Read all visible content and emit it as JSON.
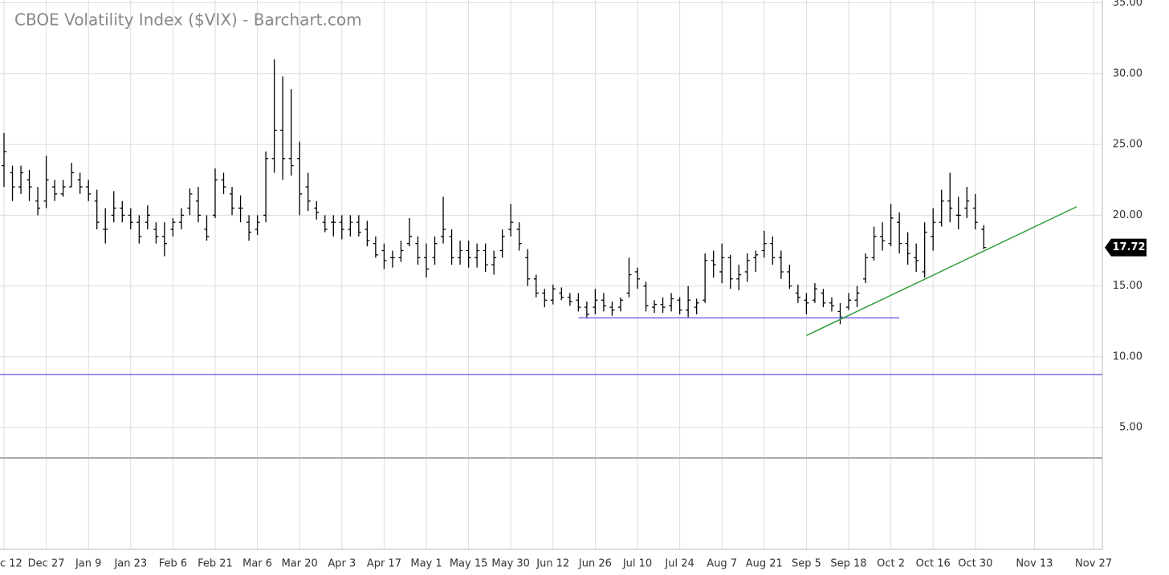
{
  "chart_data": {
    "type": "ohlc",
    "title": "CBOE Volatility Index ($VIX) - Barchart.com",
    "color": "#000000",
    "categories": [
      "c 12",
      null,
      null,
      null,
      null,
      "Dec 27",
      null,
      null,
      null,
      null,
      "Jan 9",
      null,
      null,
      null,
      null,
      "Jan 23",
      null,
      null,
      null,
      null,
      "Feb 6",
      null,
      null,
      null,
      null,
      "Feb 21",
      null,
      null,
      null,
      null,
      "Mar 6",
      null,
      null,
      null,
      null,
      "Mar 20",
      null,
      null,
      null,
      null,
      "Apr 3",
      null,
      null,
      null,
      null,
      "Apr 17",
      null,
      null,
      null,
      null,
      "May 1",
      null,
      null,
      null,
      null,
      "May 15",
      null,
      null,
      null,
      null,
      "May 30",
      null,
      null,
      null,
      null,
      "Jun 12",
      null,
      null,
      null,
      null,
      "Jun 26",
      null,
      null,
      null,
      null,
      "Jul 10",
      null,
      null,
      null,
      null,
      "Jul 24",
      null,
      null,
      null,
      null,
      "Aug 7",
      null,
      null,
      null,
      null,
      "Aug 21",
      null,
      null,
      null,
      null,
      "Sep 5",
      null,
      null,
      null,
      null,
      "Sep 18",
      null,
      null,
      null,
      null,
      "Oct 2",
      null,
      null,
      null,
      null,
      "Oct 16",
      null,
      null,
      null,
      null,
      "Oct 30",
      null,
      null,
      null,
      null,
      null,
      null,
      "Nov 13",
      null,
      null,
      null,
      null,
      null,
      null,
      "Nov 27"
    ],
    "open": [
      23.5,
      23,
      22,
      22.5,
      21,
      21,
      22,
      21.5,
      22,
      22.5,
      22,
      21,
      19,
      20,
      20.5,
      20,
      19.5,
      19.5,
      19,
      18.5,
      19,
      19.5,
      20.5,
      21,
      19,
      20,
      22.5,
      21.5,
      20.5,
      19.5,
      19,
      20,
      24,
      26,
      24,
      24,
      22,
      20.5,
      19.5,
      19.5,
      19.5,
      19,
      19.5,
      19,
      18,
      17.5,
      17,
      17,
      18,
      18,
      17,
      17,
      18.5,
      18.5,
      17,
      17.5,
      17,
      17.5,
      16.5,
      17.5,
      19,
      19,
      17,
      15.5,
      14.5,
      14,
      14.5,
      14.2,
      14,
      13.5,
      13.5,
      14,
      13.5,
      13.5,
      14.5,
      16,
      15,
      13.5,
      13.7,
      13.6,
      14,
      13.3,
      13.5,
      14,
      16.8,
      16,
      17,
      15.5,
      16,
      17,
      17.5,
      18,
      17,
      16,
      14.5,
      14,
      14,
      14.5,
      13.8,
      13.2,
      13.5,
      14,
      15.5,
      17,
      18.5,
      18,
      19.5,
      18,
      17,
      16,
      18.5,
      19.5,
      21,
      20,
      20.5,
      20.5,
      19,
      null,
      null,
      null,
      null,
      null,
      null,
      null,
      null,
      null,
      null,
      null,
      null,
      null
    ],
    "high": [
      25.8,
      23.5,
      23.5,
      23.2,
      22,
      24.2,
      22.5,
      22.5,
      23.7,
      23,
      22.5,
      21.8,
      20.5,
      21.7,
      21,
      20.5,
      20,
      20.7,
      19.5,
      19.5,
      19.8,
      20.5,
      21.9,
      22,
      20,
      23.3,
      23,
      22,
      21.4,
      20,
      20,
      24.5,
      31,
      29.8,
      28.9,
      25.2,
      23,
      21,
      20,
      20,
      20,
      20,
      20,
      19.6,
      18.5,
      18,
      17.5,
      18.2,
      19.8,
      18.5,
      18,
      18.5,
      21.3,
      19,
      18.2,
      18.2,
      18,
      18,
      17.5,
      19,
      20.8,
      19.5,
      17.6,
      15.8,
      14.8,
      15.1,
      14.9,
      14.5,
      14.5,
      13.9,
      14.8,
      14.5,
      13.9,
      14.2,
      17,
      16.3,
      15.3,
      14,
      14.2,
      14.5,
      14.2,
      15,
      14.1,
      17.3,
      17.5,
      18,
      17.2,
      16.5,
      17.3,
      17.5,
      18.9,
      18.5,
      17.5,
      16.5,
      15.1,
      14.5,
      15.2,
      14.8,
      14.2,
      13.8,
      14.5,
      15,
      17.3,
      19.2,
      19.5,
      20.8,
      20.2,
      18.8,
      18,
      19.5,
      20.5,
      21.8,
      23,
      21.3,
      22,
      21.5,
      19.3,
      null,
      null,
      null,
      null,
      null,
      null,
      null,
      null,
      null,
      null,
      null,
      null,
      null
    ],
    "low": [
      22,
      21,
      21.5,
      21,
      20,
      20.5,
      21,
      21.3,
      22,
      21.5,
      21,
      19,
      18,
      19.5,
      19.5,
      19,
      18,
      19,
      18,
      17.1,
      18.5,
      19,
      20,
      19.5,
      18.2,
      19.8,
      21.5,
      20,
      19.5,
      18.2,
      18.6,
      19.5,
      23,
      22.5,
      22.8,
      20,
      20.3,
      19.7,
      18.8,
      18.5,
      18.3,
      18.5,
      18.5,
      17.8,
      17,
      16.2,
      16.3,
      16.7,
      17.8,
      16.5,
      15.6,
      16.5,
      18,
      16.5,
      16.5,
      16.3,
      16.3,
      16,
      15.8,
      17,
      18.5,
      17.5,
      15,
      14.2,
      13.5,
      13.7,
      14,
      13.6,
      13.2,
      12.7,
      13,
      13.2,
      12.9,
      13.2,
      14.2,
      14.8,
      13.2,
      13.1,
      13.1,
      13.2,
      13,
      12.8,
      13,
      13.8,
      15.6,
      15.2,
      14.8,
      14.7,
      15.3,
      16,
      17,
      16.5,
      15.5,
      14.8,
      13.8,
      13,
      13.8,
      13.5,
      13.2,
      12.3,
      13.3,
      13.5,
      15.2,
      16.8,
      17.5,
      17.8,
      17.3,
      16.5,
      16,
      15.6,
      17.5,
      19.2,
      19.5,
      19,
      19.8,
      19,
      17.6,
      null,
      null,
      null,
      null,
      null,
      null,
      null,
      null,
      null,
      null,
      null,
      null,
      null
    ],
    "close": [
      24.5,
      22,
      23,
      22,
      20.5,
      22.5,
      21.5,
      22,
      23,
      22,
      21.5,
      19.5,
      19,
      20.5,
      20,
      19.5,
      18.5,
      20,
      18.5,
      18,
      19.5,
      20,
      21.5,
      20,
      18.5,
      22.5,
      22,
      20.5,
      20.5,
      18.8,
      19.5,
      24,
      26,
      24,
      23.5,
      21.5,
      21,
      20.2,
      19,
      19.5,
      19,
      19.5,
      18.8,
      18.2,
      17.2,
      16.8,
      17,
      17.5,
      18.5,
      17,
      16.2,
      18,
      19,
      17,
      17.5,
      17,
      17.5,
      16.5,
      17,
      18.5,
      19.5,
      18,
      15.5,
      14.5,
      14,
      14.8,
      14.2,
      13.9,
      13.5,
      13,
      14,
      13.6,
      13.3,
      14,
      15.8,
      15.5,
      13.6,
      13.7,
      13.5,
      14.1,
      13.3,
      14,
      13.8,
      16.8,
      16.5,
      17,
      15.5,
      15.8,
      16.8,
      17.2,
      18,
      17,
      16,
      15,
      14.2,
      13.8,
      14.8,
      13.8,
      13.6,
      12.8,
      14,
      14.5,
      17,
      18.5,
      18.2,
      19.8,
      18,
      17.3,
      16.8,
      18.8,
      19.5,
      21,
      20.5,
      20,
      21,
      19.5,
      17.72,
      null,
      null,
      null,
      null,
      null,
      null,
      null,
      null,
      null,
      null,
      null,
      null,
      null
    ],
    "last_price": 17.72,
    "ylim": [
      -3.6,
      35.2
    ],
    "yticks": [
      {
        "value": 5,
        "label": "5.00"
      },
      {
        "value": 10,
        "label": "10.00"
      },
      {
        "value": 15,
        "label": "15.00"
      },
      {
        "value": 20,
        "label": "20.00"
      },
      {
        "value": 25,
        "label": "25.00"
      },
      {
        "value": 30,
        "label": "30.00"
      },
      {
        "value": 35,
        "label": "35.00"
      }
    ],
    "grid": true,
    "hlines": [
      {
        "y": 8.75,
        "color": "#7b68ee"
      }
    ],
    "segments": [
      {
        "x": [
          68,
          106
        ],
        "y": [
          12.75,
          12.75
        ],
        "color": "#7b68ee"
      },
      {
        "x": [
          95,
          127
        ],
        "y": [
          11.5,
          20.6
        ],
        "color": "#2e9e3a"
      }
    ]
  }
}
